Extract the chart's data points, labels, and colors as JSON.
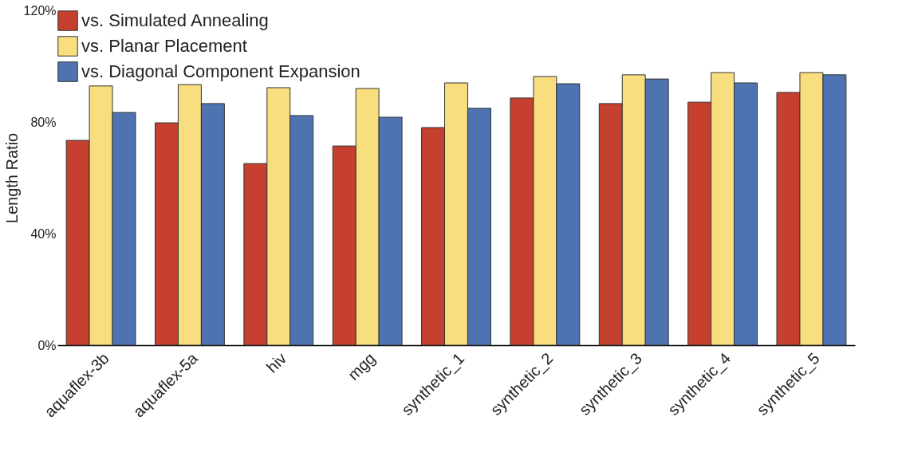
{
  "chart_data": {
    "type": "bar",
    "ylabel": "Length Ratio",
    "categories": [
      "aquaflex-3b",
      "aquaflex-5a",
      "hiv",
      "mgg",
      "synthetic_1",
      "synthetic_2",
      "synthetic_3",
      "synthetic_4",
      "synthetic_5"
    ],
    "series": [
      {
        "name": "vs. Simulated Annealing",
        "color": "#c5402f",
        "values": [
          73.4,
          79.7,
          65.1,
          71.4,
          78,
          88.6,
          86.6,
          87.1,
          90.6
        ]
      },
      {
        "name": "vs. Planar Placement",
        "color": "#f8de7e",
        "values": [
          92.9,
          93.4,
          92.3,
          92,
          94,
          96.3,
          96.9,
          97.7,
          97.7
        ]
      },
      {
        "name": "vs. Diagonal Component Expansion",
        "color": "#4f73b0",
        "values": [
          83.4,
          86.6,
          82.3,
          81.7,
          84.9,
          93.7,
          95.4,
          94,
          96.9
        ]
      }
    ],
    "ylim": [
      0,
      120
    ],
    "yticks": [
      {
        "value": 0,
        "label": "0%"
      },
      {
        "value": 40,
        "label": "40%"
      },
      {
        "value": 80,
        "label": "80%"
      },
      {
        "value": 120,
        "label": "120%"
      }
    ],
    "grid": false,
    "legend": "top left"
  }
}
